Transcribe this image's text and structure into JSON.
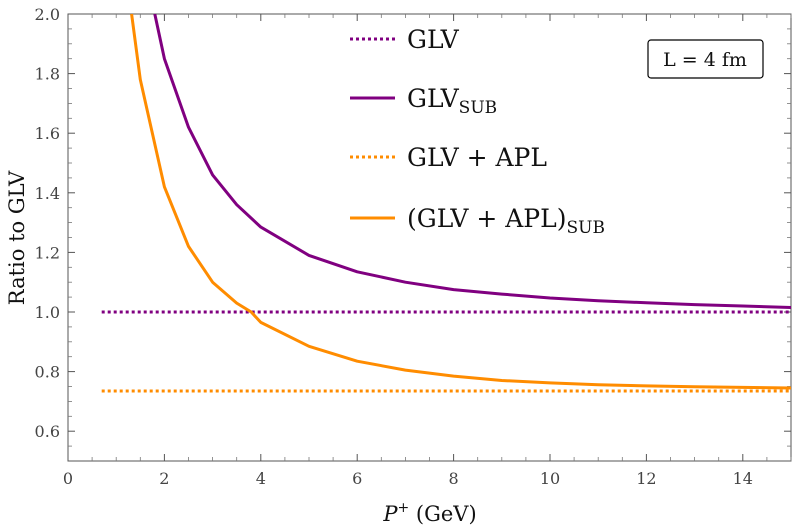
{
  "chart_data": {
    "type": "line",
    "title": "",
    "xlabel": {
      "var": "P",
      "sup": "+",
      "unit": " (GeV)"
    },
    "ylabel": "Ratio to GLV",
    "xlim": [
      0,
      15
    ],
    "ylim": [
      0.5,
      2.0
    ],
    "xticks": [
      0,
      2,
      4,
      6,
      8,
      10,
      12,
      14
    ],
    "yticks": [
      0.6,
      0.8,
      1.0,
      1.2,
      1.4,
      1.6,
      1.8,
      2.0
    ],
    "xtick_labels": [
      "0",
      "2",
      "4",
      "6",
      "8",
      "10",
      "12",
      "14"
    ],
    "ytick_labels": [
      "0.6",
      "0.8",
      "1.0",
      "1.2",
      "1.4",
      "1.6",
      "1.8",
      "2.0"
    ],
    "grid": false,
    "legend_position": "top-center",
    "annotation": "L = 4 fm",
    "series": [
      {
        "name": "GLV",
        "sub": "",
        "color": "#800080",
        "style": "dotted",
        "points": [
          [
            0.7,
            1.0
          ],
          [
            15,
            1.0
          ]
        ]
      },
      {
        "name": "GLV",
        "sub": "SUB",
        "color": "#800080",
        "style": "solid",
        "points": [
          [
            1.8,
            2.0
          ],
          [
            2,
            1.85
          ],
          [
            2.5,
            1.62
          ],
          [
            3,
            1.46
          ],
          [
            3.5,
            1.36
          ],
          [
            4,
            1.285
          ],
          [
            5,
            1.19
          ],
          [
            6,
            1.135
          ],
          [
            7,
            1.1
          ],
          [
            8,
            1.075
          ],
          [
            9,
            1.06
          ],
          [
            10,
            1.047
          ],
          [
            11,
            1.038
          ],
          [
            12,
            1.031
          ],
          [
            13,
            1.025
          ],
          [
            14,
            1.02
          ],
          [
            15,
            1.015
          ]
        ]
      },
      {
        "name": "GLV + APL",
        "sub": "",
        "color": "#FF8C00",
        "style": "dotted",
        "points": [
          [
            0.7,
            0.735
          ],
          [
            15,
            0.735
          ]
        ]
      },
      {
        "name": "(GLV + APL)",
        "sub": "SUB",
        "color": "#FF8C00",
        "style": "solid",
        "points": [
          [
            1.32,
            2.0
          ],
          [
            1.5,
            1.78
          ],
          [
            2,
            1.42
          ],
          [
            2.5,
            1.22
          ],
          [
            3,
            1.1
          ],
          [
            3.5,
            1.03
          ],
          [
            3.8,
            1.0
          ],
          [
            4,
            0.965
          ],
          [
            5,
            0.885
          ],
          [
            6,
            0.835
          ],
          [
            7,
            0.805
          ],
          [
            8,
            0.785
          ],
          [
            9,
            0.77
          ],
          [
            10,
            0.762
          ],
          [
            11,
            0.756
          ],
          [
            12,
            0.752
          ],
          [
            13,
            0.749
          ],
          [
            14,
            0.747
          ],
          [
            15,
            0.745
          ]
        ]
      }
    ]
  }
}
